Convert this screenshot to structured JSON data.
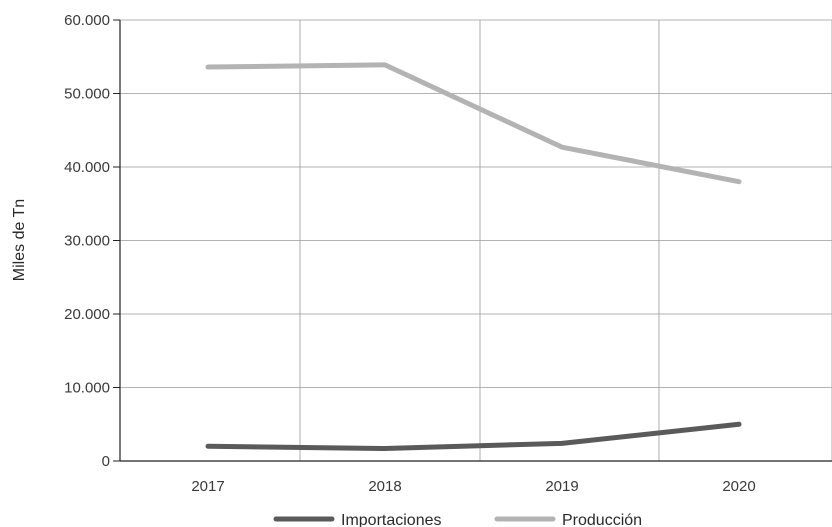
{
  "chart_data": {
    "type": "line",
    "title": "",
    "xlabel": "",
    "ylabel": "Miles de Tn",
    "categories": [
      "2017",
      "2018",
      "2019",
      "2020"
    ],
    "ylim": [
      0,
      60000
    ],
    "yticks": [
      0,
      10000,
      20000,
      30000,
      40000,
      50000,
      60000
    ],
    "ytick_labels": [
      "0",
      "10.000",
      "20.000",
      "30.000",
      "40.000",
      "50.000",
      "60.000"
    ],
    "grid": true,
    "legend_position": "bottom",
    "series": [
      {
        "name": "Importaciones",
        "color": "#5a5a5a",
        "values": [
          2000,
          1700,
          2400,
          5000
        ]
      },
      {
        "name": "Producción",
        "color": "#b3b3b3",
        "values": [
          53600,
          53900,
          42700,
          38000
        ]
      }
    ]
  }
}
